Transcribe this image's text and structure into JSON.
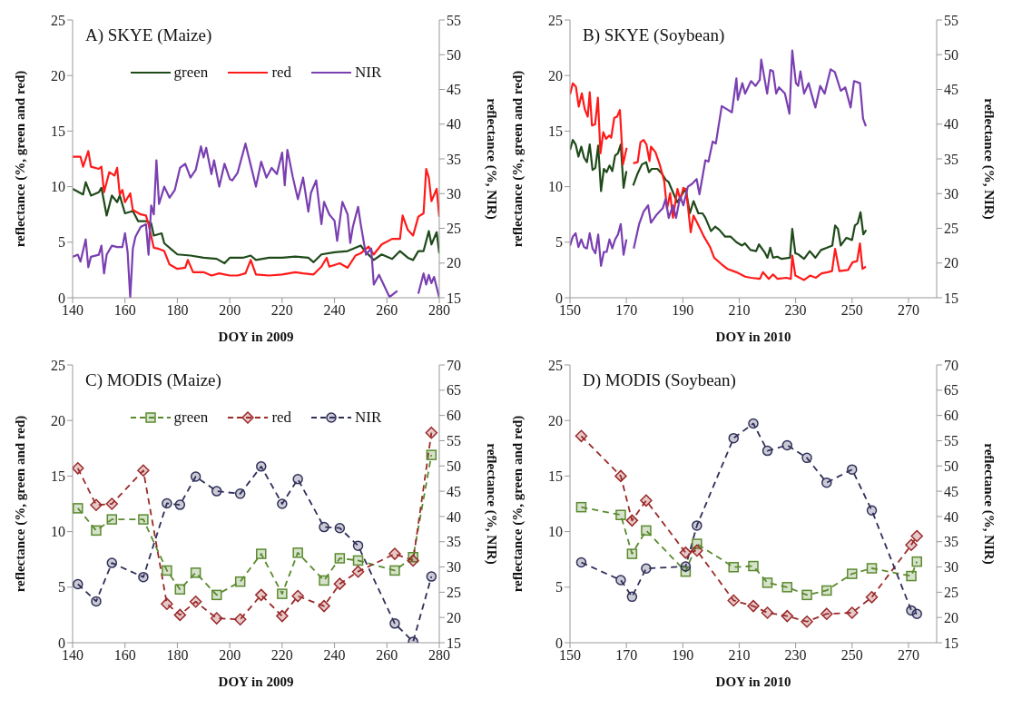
{
  "chart_data": [
    {
      "type": "line",
      "title": "A) SKYE (Maize)",
      "xlabel": "DOY in 2009",
      "ylabel": "reflectance (%, green and red)",
      "y2label": "reflectance (%, NIR)",
      "xlim": [
        140,
        280
      ],
      "xticks": [
        140,
        160,
        180,
        200,
        220,
        240,
        260,
        280
      ],
      "ylim": [
        0,
        25
      ],
      "yticks": [
        0,
        5,
        10,
        15,
        20,
        25
      ],
      "y2lim": [
        15,
        55
      ],
      "y2ticks": [
        15,
        20,
        25,
        30,
        35,
        40,
        45,
        50,
        55
      ],
      "legend": "top",
      "line_style": "solid",
      "series": [
        {
          "name": "green",
          "color": "#1f4a1a",
          "x": [
            140,
            144,
            145,
            147,
            150,
            151,
            153,
            155,
            157,
            158,
            160,
            163,
            165,
            168,
            170,
            171,
            174,
            175,
            178,
            180,
            185,
            190,
            195,
            198,
            200,
            205,
            208,
            210,
            215,
            220,
            225,
            230,
            232,
            235,
            240,
            245,
            250,
            252,
            255,
            258,
            262,
            265,
            268,
            270,
            272,
            274,
            276,
            277,
            279,
            280
          ],
          "values": [
            9.8,
            9.3,
            10.4,
            9.2,
            9.5,
            9.9,
            7.4,
            9.2,
            8.6,
            9.2,
            7.6,
            7.8,
            6.9,
            6.9,
            6.7,
            5.6,
            5.8,
            4.9,
            4.3,
            3.9,
            3.8,
            3.6,
            3.5,
            3.1,
            3.6,
            3.6,
            3.8,
            3.4,
            3.6,
            3.6,
            3.7,
            3.6,
            3.2,
            3.9,
            4.1,
            4.2,
            4.7,
            4.1,
            3.4,
            3.9,
            3.5,
            4.2,
            3.6,
            3.4,
            4.2,
            4.2,
            6.0,
            4.8,
            5.9,
            4.0
          ]
        },
        {
          "name": "red",
          "color": "#ff1a1a",
          "x": [
            140,
            143,
            144,
            146,
            147,
            150,
            151,
            152,
            154,
            156,
            157,
            158,
            159,
            160,
            162,
            163,
            166,
            168,
            169,
            171,
            173,
            175,
            177,
            180,
            183,
            184,
            186,
            190,
            193,
            196,
            200,
            203,
            206,
            208,
            210,
            215,
            220,
            225,
            228,
            232,
            235,
            237,
            238,
            242,
            245,
            248,
            250,
            253,
            255,
            258,
            262,
            265,
            266,
            268,
            270,
            272,
            274,
            275,
            276,
            277,
            279,
            280
          ],
          "values": [
            12.7,
            12.7,
            11.8,
            13.2,
            11.8,
            11.6,
            11.8,
            9.5,
            11.3,
            11.0,
            11.7,
            9.3,
            9.7,
            8.6,
            9.4,
            7.9,
            7.5,
            7.4,
            6.6,
            4.5,
            4.4,
            4.2,
            3.0,
            2.6,
            2.7,
            3.4,
            2.3,
            2.3,
            2.0,
            2.2,
            2.0,
            2.0,
            2.2,
            3.4,
            2.1,
            2.0,
            2.1,
            2.3,
            2.2,
            2.1,
            2.8,
            3.6,
            2.8,
            3.1,
            2.7,
            3.8,
            4.0,
            4.6,
            3.9,
            4.8,
            5.3,
            5.3,
            7.4,
            6.1,
            5.6,
            7.3,
            7.6,
            11.6,
            10.8,
            8.7,
            9.8,
            7.3
          ]
        },
        {
          "name": "NIR",
          "color": "#7a3fb0",
          "axis": "y2",
          "x": [
            140,
            142,
            143,
            145,
            146,
            147,
            150,
            151,
            152,
            153,
            155,
            157,
            159,
            160,
            161,
            162,
            163,
            164,
            166,
            168,
            169,
            170,
            171,
            172,
            173,
            175,
            177,
            179,
            181,
            183,
            185,
            187,
            189,
            190,
            191,
            193,
            194,
            196,
            198,
            200,
            201,
            203,
            206,
            208,
            210,
            212,
            214,
            216,
            218,
            220,
            221,
            222,
            224,
            226,
            228,
            230,
            231,
            233,
            235,
            236,
            238,
            240,
            241,
            243,
            245,
            246,
            247,
            249,
            250,
            252,
            254,
            255,
            257,
            259,
            261,
            264,
            266,
            271,
            272,
            274,
            275,
            276,
            277,
            278,
            280
          ],
          "values": [
            20.9,
            21.2,
            20.2,
            23.4,
            19.4,
            20.9,
            21.2,
            22.5,
            18.5,
            21.2,
            22.5,
            22.3,
            22.3,
            24.3,
            21.6,
            15,
            22.1,
            23.8,
            25.2,
            25.6,
            21.2,
            28.3,
            27.0,
            34.8,
            28.5,
            31.0,
            29.4,
            30.5,
            33.7,
            34.3,
            32.3,
            33.4,
            36.8,
            35.2,
            36.6,
            32.8,
            34.8,
            31.0,
            34.3,
            32.1,
            31.9,
            33.0,
            37.2,
            34.1,
            31.0,
            34.6,
            32.3,
            33.7,
            32.8,
            35.9,
            31.2,
            36.3,
            32.5,
            29.2,
            32.3,
            27.4,
            30.1,
            31.9,
            25.6,
            28.8,
            27.0,
            26.1,
            23.2,
            28.8,
            27.0,
            22.9,
            25.2,
            28.1,
            25.6,
            21.2,
            22.1,
            16.9,
            18.3,
            16.7,
            15.1,
            16.0,
            null,
            null,
            15.6,
            18.5,
            16.9,
            18.3,
            17.1,
            18.0,
            15
          ]
        }
      ]
    },
    {
      "type": "line",
      "title": "B) SKYE (Soybean)",
      "xlabel": "DOY in 2010",
      "ylabel": "reflectance (%, green and red)",
      "y2label": "reflectance (%, NIR)",
      "xlim": [
        150,
        280
      ],
      "xticks": [
        150,
        170,
        190,
        210,
        230,
        250,
        270
      ],
      "ylim": [
        0,
        25
      ],
      "yticks": [
        0,
        5,
        10,
        15,
        20,
        25
      ],
      "y2lim": [
        15,
        55
      ],
      "y2ticks": [
        15,
        20,
        25,
        30,
        35,
        40,
        45,
        50,
        55
      ],
      "line_style": "solid",
      "series": [
        {
          "color": "#1f4a1a",
          "x": [
            150,
            151,
            152,
            153,
            154,
            155,
            156,
            157,
            158,
            159,
            160,
            161,
            162,
            163,
            164,
            165,
            166,
            167,
            168,
            169,
            170,
            171,
            172.4,
            174,
            175.5,
            177,
            178,
            179,
            181,
            182.5,
            184,
            185,
            186.5,
            188,
            189.5,
            191,
            192.5,
            193.8,
            195.5,
            197,
            198,
            200,
            201.5,
            203,
            205,
            207,
            209,
            211,
            212,
            214,
            216,
            217,
            219,
            220,
            221,
            222,
            223.5,
            225,
            228,
            228.8,
            229.9,
            231,
            233,
            235,
            236,
            237,
            239,
            241,
            243,
            244,
            245,
            246,
            248,
            250,
            251,
            252,
            253,
            254,
            255
          ],
          "values": [
            13.3,
            14.2,
            13.8,
            12.7,
            13.6,
            12.6,
            12.2,
            13.8,
            11.5,
            11.7,
            13.7,
            9.6,
            11.6,
            11.3,
            11.9,
            11.4,
            12.8,
            13.0,
            13.8,
            9.9,
            11.4,
            null,
            10.1,
            11.2,
            12.0,
            12.2,
            11.3,
            11.6,
            11.6,
            11.2,
            10.6,
            10.4,
            9.5,
            8.6,
            9.2,
            9.8,
            7.6,
            8.7,
            7.6,
            7.6,
            7.2,
            6.0,
            6.4,
            6.1,
            5.5,
            5.5,
            5.0,
            4.7,
            4.9,
            4.3,
            4.2,
            4.8,
            4.1,
            3.6,
            4.5,
            3.6,
            3.7,
            3.5,
            3.6,
            6.2,
            4.0,
            3.9,
            3.5,
            4.2,
            3.9,
            3.6,
            4.3,
            4.5,
            4.7,
            6.5,
            6.2,
            4.7,
            5.4,
            5.2,
            6.5,
            6.7,
            7.7,
            5.7,
            6.1
          ]
        },
        {
          "color": "#ff1a1a",
          "x": [
            150,
            151,
            152.1,
            153.1,
            154.2,
            155.2,
            156.3,
            157,
            157.8,
            158.9,
            159.9,
            160.8,
            161.8,
            162.8,
            163.9,
            164.6,
            165.7,
            166.7,
            167.7,
            168.8,
            170.1,
            171,
            172.4,
            174,
            175,
            176.1,
            177.1,
            178.2,
            178.7,
            180.3,
            181.8,
            183.4,
            184.4,
            185.5,
            186.5,
            188.1,
            189.1,
            190.2,
            191.2,
            192.8,
            193.8,
            195.4,
            197.5,
            199.6,
            201.1,
            203.8,
            205.8,
            209,
            212.1,
            214.2,
            217.3,
            218.4,
            220.5,
            222,
            223.6,
            226.7,
            228.3,
            228.8,
            229.9,
            233,
            235.1,
            237.2,
            239.2,
            241.3,
            242.9,
            244,
            245.5,
            248.6,
            250.2,
            251.8,
            252.8,
            253.7,
            254.9
          ],
          "values": [
            18.3,
            19.3,
            19.0,
            17.2,
            18.4,
            17.0,
            16.3,
            18.5,
            15.5,
            15.6,
            18.0,
            13.0,
            14.9,
            14.3,
            14.6,
            14.4,
            16.2,
            16.3,
            16.9,
            12.0,
            13.5,
            null,
            12.1,
            12.2,
            14.0,
            14.2,
            13.8,
            12.3,
            13.6,
            13.1,
            12.0,
            10.5,
            8.0,
            9.4,
            7.2,
            9.8,
            8.8,
            9.9,
            9.7,
            5.9,
            7.4,
            6.6,
            5.5,
            4.6,
            3.6,
            3.0,
            2.6,
            2.3,
            1.9,
            1.8,
            1.7,
            2.3,
            1.7,
            2.1,
            1.7,
            1.8,
            1.7,
            3.8,
            2.0,
            1.6,
            2.0,
            1.8,
            2.2,
            2.3,
            2.4,
            4.4,
            2.4,
            2.5,
            3.2,
            3.3,
            4.9,
            2.6,
            2.8
          ]
        },
        {
          "color": "#7a3fb0",
          "axis": "y2",
          "x": [
            150,
            151,
            152,
            153,
            154,
            155,
            156,
            157,
            158,
            159,
            160,
            161,
            162,
            163,
            164,
            165,
            166,
            167,
            168,
            169,
            170,
            171,
            172.6,
            174.5,
            176.1,
            177.7,
            178.7,
            180.8,
            182.9,
            183.9,
            185,
            186.5,
            187.6,
            189.1,
            190.2,
            191.8,
            193.3,
            194.9,
            195.9,
            198,
            199.1,
            200.6,
            201.7,
            203.8,
            205.8,
            207.4,
            209,
            209.5,
            211.1,
            212.1,
            214.2,
            215.8,
            217.3,
            217.8,
            219.9,
            221,
            222,
            223.1,
            224.1,
            226.2,
            227.8,
            228.8,
            230.1,
            230.9,
            231.7,
            233,
            234.6,
            235.6,
            237,
            238.7,
            240.3,
            242.4,
            243.9,
            246,
            247.6,
            249.5,
            250.7,
            252.8,
            253.9,
            254.9
          ],
          "values": [
            22.5,
            23.8,
            24.3,
            22.3,
            23.4,
            22.3,
            22.1,
            24.3,
            22.1,
            21.4,
            24.1,
            19.6,
            21.6,
            21.6,
            23.4,
            22.1,
            23.4,
            24.1,
            25.6,
            21.2,
            23.4,
            null,
            22.1,
            25.6,
            27.4,
            28.3,
            25.8,
            27.0,
            27.9,
            29.2,
            26.5,
            28.3,
            26.5,
            29.6,
            28.3,
            31.0,
            31.4,
            32.1,
            29.9,
            34.8,
            34.6,
            37.5,
            37.2,
            42.6,
            42.1,
            41.7,
            46.6,
            43.5,
            45.9,
            44.4,
            46.2,
            45.5,
            46.4,
            49.3,
            44.4,
            47.8,
            47.6,
            44.4,
            45.3,
            44.4,
            41.5,
            50.6,
            45.9,
            45.5,
            47.6,
            44.4,
            45.9,
            44.4,
            42.4,
            45.5,
            44.4,
            47.9,
            47.5,
            44.8,
            45.3,
            42.4,
            46.2,
            45.9,
            40.8,
            39.7
          ]
        }
      ]
    },
    {
      "type": "line",
      "title": "C) MODIS (Maize)",
      "xlabel": "DOY in 2009",
      "ylabel": "reflectance (%, green and red)",
      "y2label": "reflectance (%, NIR)",
      "xlim": [
        140,
        280
      ],
      "xticks": [
        140,
        160,
        180,
        200,
        220,
        240,
        260,
        280
      ],
      "ylim": [
        0,
        25
      ],
      "yticks": [
        0,
        5,
        10,
        15,
        20,
        25
      ],
      "y2lim": [
        15,
        70
      ],
      "y2ticks": [
        15,
        20,
        25,
        30,
        35,
        40,
        45,
        50,
        55,
        60,
        65,
        70
      ],
      "legend": "top",
      "line_style": "dashed",
      "series": [
        {
          "name": "green",
          "color": "#5a8a2e",
          "marker": "square",
          "x": [
            142,
            149,
            155,
            167,
            176,
            181,
            187,
            195,
            204,
            212,
            220,
            226,
            236,
            242,
            249,
            263,
            270,
            277
          ],
          "values": [
            12.1,
            10.1,
            11.1,
            11.1,
            6.5,
            4.8,
            6.3,
            4.3,
            5.5,
            8.0,
            4.4,
            8.1,
            5.6,
            7.6,
            7.4,
            6.5,
            7.7,
            16.9
          ]
        },
        {
          "name": "red",
          "color": "#9b2a2a",
          "marker": "diamond",
          "x": [
            142,
            149,
            155,
            167,
            176,
            181,
            187,
            195,
            204,
            212,
            220,
            226,
            236,
            242,
            249,
            263,
            270,
            277
          ],
          "values": [
            15.7,
            12.4,
            12.5,
            15.5,
            3.5,
            2.5,
            3.7,
            2.2,
            2.1,
            4.3,
            2.4,
            4.2,
            3.3,
            5.3,
            6.4,
            8.0,
            7.4,
            18.9
          ]
        },
        {
          "name": "NIR",
          "color": "#2f2f5a",
          "marker": "circle",
          "axis": "y2",
          "x": [
            142,
            149,
            155,
            167,
            176,
            181,
            187,
            195,
            204,
            212,
            220,
            226,
            236,
            242,
            249,
            263,
            270,
            277
          ],
          "values": [
            26.6,
            23.2,
            30.8,
            28.0,
            42.6,
            42.3,
            47.9,
            45.0,
            44.5,
            49.9,
            42.5,
            47.4,
            37.9,
            37.7,
            34.2,
            18.8,
            15.2,
            28.1
          ]
        }
      ]
    },
    {
      "type": "line",
      "title": "D) MODIS (Soybean)",
      "xlabel": "DOY in 2010",
      "ylabel": "reflectance (%, green and red)",
      "y2label": "reflectance (%, NIR)",
      "xlim": [
        150,
        280
      ],
      "xticks": [
        150,
        170,
        190,
        210,
        230,
        250,
        270
      ],
      "ylim": [
        0,
        25
      ],
      "yticks": [
        0,
        5,
        10,
        15,
        20,
        25
      ],
      "y2lim": [
        15,
        70
      ],
      "y2ticks": [
        15,
        20,
        25,
        30,
        35,
        40,
        45,
        50,
        55,
        60,
        65,
        70
      ],
      "line_style": "dashed",
      "series": [
        {
          "color": "#5a8a2e",
          "marker": "square",
          "x": [
            154,
            168,
            172,
            177,
            191,
            195,
            208,
            215,
            220,
            227,
            234,
            241,
            250,
            257,
            271,
            273
          ],
          "values": [
            12.2,
            11.5,
            8.0,
            10.1,
            6.4,
            8.9,
            6.8,
            6.9,
            5.4,
            5.0,
            4.3,
            4.7,
            6.2,
            6.7,
            6.0,
            7.3
          ]
        },
        {
          "color": "#9b2a2a",
          "marker": "diamond",
          "x": [
            154,
            168,
            172,
            177,
            191,
            195,
            208,
            215,
            220,
            227,
            234,
            241,
            250,
            257,
            271,
            273
          ],
          "values": [
            18.6,
            15.0,
            11.0,
            12.8,
            8.1,
            8.3,
            3.8,
            3.3,
            2.7,
            2.4,
            1.9,
            2.6,
            2.7,
            4.1,
            8.8,
            9.6
          ]
        },
        {
          "color": "#2f2f5a",
          "marker": "circle",
          "axis": "y2",
          "x": [
            154,
            168,
            172,
            177,
            191,
            195,
            208,
            215,
            220,
            227,
            234,
            241,
            250,
            257,
            271,
            273
          ],
          "values": [
            30.9,
            27.4,
            24.1,
            29.7,
            30.1,
            38.2,
            55.5,
            58.4,
            53.0,
            54.1,
            51.6,
            46.7,
            49.3,
            41.2,
            21.4,
            20.7
          ]
        }
      ]
    }
  ]
}
